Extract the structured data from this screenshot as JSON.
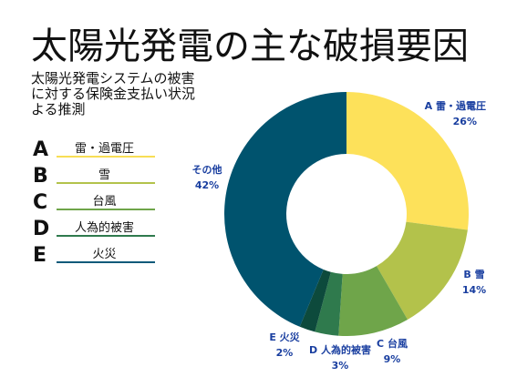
{
  "title": "太陽光発電の主な破損要因",
  "subtitle": "太陽光発電システムの被害\nに対する保険金支払い状況\nよる推測",
  "legend": [
    {
      "letter": "A",
      "label": "雷・過電圧",
      "color": "#f8de55"
    },
    {
      "letter": "B",
      "label": "雪",
      "color": "#b3c24b"
    },
    {
      "letter": "C",
      "label": "台風",
      "color": "#6fa54a"
    },
    {
      "letter": "D",
      "label": "人為的被害",
      "color": "#2f7a4d"
    },
    {
      "letter": "E",
      "label": "火災",
      "color": "#0c5a7a"
    }
  ],
  "chart_data": {
    "type": "pie",
    "donut": true,
    "slices": [
      {
        "letter": "A",
        "name": "雷・過電圧",
        "value": 26,
        "label_line1": "A 雷・過電圧",
        "label_line2": "26%",
        "color": "#fde15a"
      },
      {
        "letter": "B",
        "name": "雪",
        "value": 14,
        "label_line1": "B 雪",
        "label_line2": "14%",
        "color": "#b3c24b"
      },
      {
        "letter": "C",
        "name": "台風",
        "value": 9,
        "label_line1": "C 台風",
        "label_line2": "9%",
        "color": "#6fa54a"
      },
      {
        "letter": "D",
        "name": "人為的被害",
        "value": 3,
        "label_line1": "D 人為的被害",
        "label_line2": "3%",
        "color": "#2f7a4d"
      },
      {
        "letter": "E",
        "name": "火災",
        "value": 2,
        "label_line1": "E 火災",
        "label_line2": "2%",
        "color": "#0d4a3c"
      },
      {
        "letter": "",
        "name": "その他",
        "value": 42,
        "label_line1": "その他",
        "label_line2": "42%",
        "color": "#00536e"
      }
    ]
  }
}
